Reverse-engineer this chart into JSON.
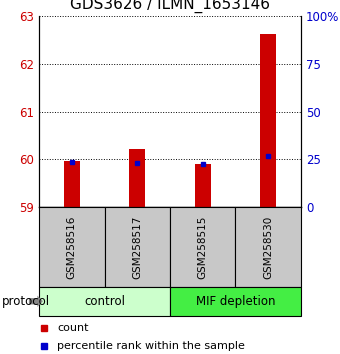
{
  "title": "GDS3626 / ILMN_1653146",
  "samples": [
    "GSM258516",
    "GSM258517",
    "GSM258515",
    "GSM258530"
  ],
  "count_values": [
    59.97,
    60.22,
    59.9,
    62.62
  ],
  "percentile_values": [
    23.5,
    23.0,
    22.5,
    26.5
  ],
  "ylim_left": [
    59,
    63
  ],
  "ylim_right": [
    0,
    100
  ],
  "yticks_left": [
    59,
    60,
    61,
    62,
    63
  ],
  "yticks_right": [
    0,
    25,
    50,
    75,
    100
  ],
  "ytick_labels_right": [
    "0",
    "25",
    "50",
    "75",
    "100%"
  ],
  "bar_color": "#cc0000",
  "percentile_color": "#0000cc",
  "groups": [
    {
      "label": "control",
      "samples": [
        0,
        1
      ],
      "color": "#ccffcc"
    },
    {
      "label": "MIF depletion",
      "samples": [
        2,
        3
      ],
      "color": "#44ee44"
    }
  ],
  "sample_box_color": "#c8c8c8",
  "bar_width": 0.25,
  "protocol_label": "protocol",
  "background_color": "#ffffff",
  "title_fontsize": 11,
  "tick_fontsize": 8.5,
  "legend_fontsize": 8
}
